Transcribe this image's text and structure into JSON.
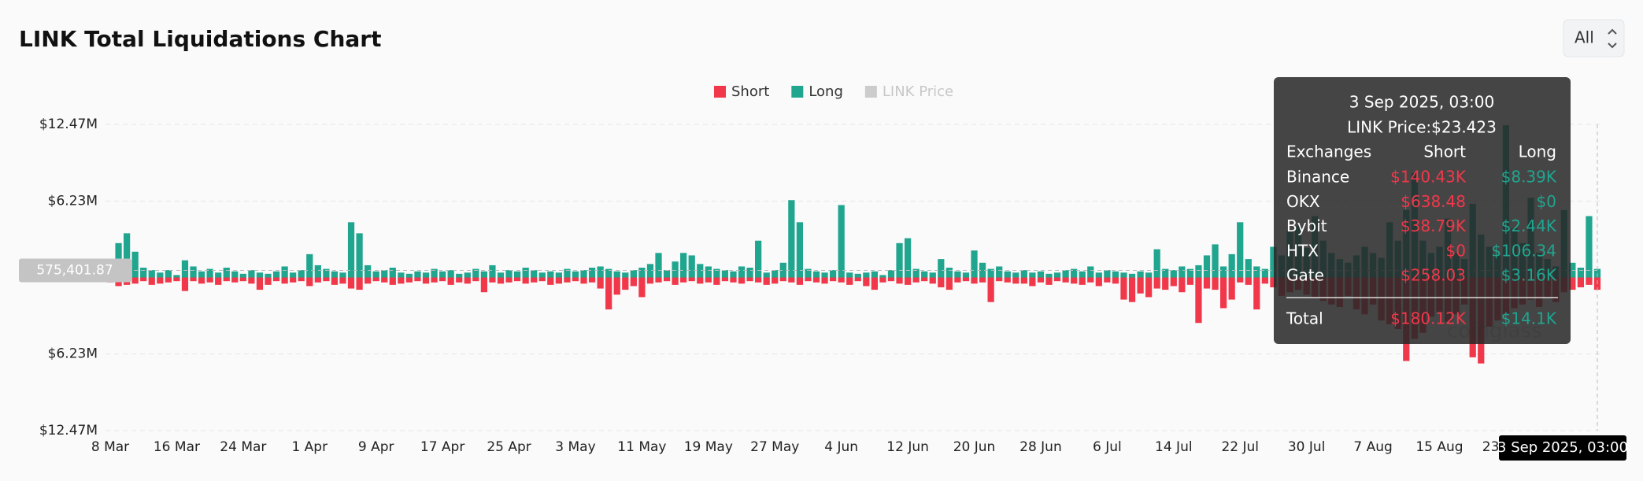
{
  "chart_data": {
    "type": "bar",
    "title": "LINK Total Liquidations Chart",
    "range_button": "All",
    "categories": [
      "8 Mar",
      null,
      null,
      null,
      null,
      null,
      null,
      null,
      "16 Mar",
      null,
      null,
      null,
      null,
      null,
      null,
      null,
      "24 Mar",
      null,
      null,
      null,
      null,
      null,
      null,
      null,
      "1 Apr",
      null,
      null,
      null,
      null,
      null,
      null,
      null,
      "9 Apr",
      null,
      null,
      null,
      null,
      null,
      null,
      null,
      "17 Apr",
      null,
      null,
      null,
      null,
      null,
      null,
      null,
      "25 Apr",
      null,
      null,
      null,
      null,
      null,
      null,
      null,
      "3 May",
      null,
      null,
      null,
      null,
      null,
      null,
      null,
      "11 May",
      null,
      null,
      null,
      null,
      null,
      null,
      null,
      "19 May",
      null,
      null,
      null,
      null,
      null,
      null,
      null,
      "27 May",
      null,
      null,
      null,
      null,
      null,
      null,
      null,
      "4 Jun",
      null,
      null,
      null,
      null,
      null,
      null,
      null,
      "12 Jun",
      null,
      null,
      null,
      null,
      null,
      null,
      null,
      "20 Jun",
      null,
      null,
      null,
      null,
      null,
      null,
      null,
      "28 Jun",
      null,
      null,
      null,
      null,
      null,
      null,
      null,
      "6 Jul",
      null,
      null,
      null,
      null,
      null,
      null,
      null,
      "14 Jul",
      null,
      null,
      null,
      null,
      null,
      null,
      null,
      "22 Jul",
      null,
      null,
      null,
      null,
      null,
      null,
      null,
      "30 Jul",
      null,
      null,
      null,
      null,
      null,
      null,
      null,
      "7 Aug",
      null,
      null,
      null,
      null,
      null,
      null,
      null,
      "15 Aug",
      null,
      null,
      null,
      null,
      null,
      null,
      null,
      "23 Aug",
      null,
      null,
      null,
      null,
      null,
      null,
      null,
      null,
      null,
      null,
      null
    ],
    "series": [
      {
        "name": "Short",
        "color": "#f0384a",
        "values": [
          -400000,
          -700000,
          -600000,
          -500000,
          -300000,
          -600000,
          -500000,
          -400000,
          -300000,
          -1100000,
          -300000,
          -500000,
          -400000,
          -600000,
          -300000,
          -400000,
          -300000,
          -500000,
          -1000000,
          -600000,
          -300000,
          -500000,
          -400000,
          -300000,
          -700000,
          -400000,
          -300000,
          -600000,
          -500000,
          -900000,
          -1000000,
          -500000,
          -300000,
          -400000,
          -600000,
          -500000,
          -400000,
          -300000,
          -500000,
          -400000,
          -300000,
          -600000,
          -400000,
          -500000,
          -300000,
          -1200000,
          -400000,
          -500000,
          -400000,
          -300000,
          -500000,
          -400000,
          -300000,
          -600000,
          -500000,
          -400000,
          -300000,
          -500000,
          -400000,
          -900000,
          -2600000,
          -1400000,
          -1000000,
          -700000,
          -1600000,
          -500000,
          -400000,
          -300000,
          -600000,
          -400000,
          -300000,
          -500000,
          -400000,
          -600000,
          -300000,
          -400000,
          -500000,
          -300000,
          -400000,
          -600000,
          -500000,
          -300000,
          -400000,
          -600000,
          -300000,
          -400000,
          -500000,
          -300000,
          -400000,
          -600000,
          -300000,
          -700000,
          -1000000,
          -400000,
          -300000,
          -500000,
          -600000,
          -400000,
          -300000,
          -500000,
          -800000,
          -1000000,
          -400000,
          -300000,
          -500000,
          -400000,
          -2000000,
          -300000,
          -400000,
          -500000,
          -500000,
          -700000,
          -400000,
          -600000,
          -300000,
          -400000,
          -500000,
          -600000,
          -400000,
          -700000,
          -400000,
          -500000,
          -1800000,
          -2000000,
          -1300000,
          -1600000,
          -900000,
          -1000000,
          -700000,
          -1200000,
          -600000,
          -3700000,
          -900000,
          -1000000,
          -2500000,
          -1800000,
          -400000,
          -600000,
          -2600000,
          -500000,
          -800000,
          -1500000,
          -1200000,
          -1000000,
          -1400000,
          -1600000,
          -1900000,
          -2200000,
          -2400000,
          -1500000,
          -2600000,
          -3000000,
          -2200000,
          -3500000,
          -3800000,
          -4200000,
          -6800000,
          -5000000,
          -4500000,
          -3200000,
          -2800000,
          -3600000,
          -3000000,
          -2200000,
          -6500000,
          -7000000,
          -4000000,
          -3500000,
          -3000000,
          -2500000,
          -2200000,
          -1800000,
          -2400000,
          -1600000,
          -2000000,
          -1200000,
          -1000000,
          -800000,
          -600000,
          -1000000
        ]
      },
      {
        "name": "Long",
        "color": "#20a58f",
        "values": [
          700000,
          2800000,
          3600000,
          2100000,
          800000,
          600000,
          400000,
          600000,
          200000,
          1400000,
          900000,
          500000,
          700000,
          400000,
          800000,
          500000,
          300000,
          600000,
          400000,
          300000,
          500000,
          900000,
          400000,
          600000,
          1900000,
          1000000,
          700000,
          500000,
          400000,
          4500000,
          3600000,
          1000000,
          500000,
          600000,
          800000,
          400000,
          300000,
          500000,
          400000,
          700000,
          500000,
          600000,
          300000,
          400000,
          700000,
          500000,
          1000000,
          400000,
          600000,
          500000,
          800000,
          600000,
          400000,
          500000,
          400000,
          700000,
          500000,
          600000,
          800000,
          900000,
          700000,
          500000,
          400000,
          600000,
          800000,
          1100000,
          2000000,
          600000,
          1300000,
          2000000,
          1800000,
          1100000,
          900000,
          700000,
          600000,
          500000,
          900000,
          800000,
          3000000,
          400000,
          600000,
          1200000,
          6300000,
          4500000,
          700000,
          500000,
          400000,
          600000,
          5900000,
          400000,
          300000,
          400000,
          500000,
          200000,
          600000,
          2800000,
          3200000,
          700000,
          500000,
          400000,
          1500000,
          800000,
          500000,
          400000,
          2200000,
          1200000,
          700000,
          900000,
          500000,
          400000,
          600000,
          400000,
          500000,
          300000,
          400000,
          600000,
          700000,
          500000,
          900000,
          400000,
          600000,
          500000,
          400000,
          300000,
          500000,
          400000,
          2300000,
          700000,
          600000,
          900000,
          700000,
          1000000,
          1800000,
          2700000,
          900000,
          1900000,
          4500000,
          1500000,
          900000,
          700000,
          2500000,
          1800000,
          3800000,
          4200000,
          2400000,
          5000000,
          3000000,
          2000000,
          1500000,
          1200000,
          1800000,
          2500000,
          2000000,
          1600000,
          4500000,
          3000000,
          5500000,
          8500000,
          3000000,
          2000000,
          2500000,
          4800000,
          2000000,
          1500000,
          6000000,
          3500000,
          2500000,
          1800000,
          12400000,
          4000000,
          2800000,
          6500000,
          2000000,
          1500000,
          900000,
          5500000,
          1200000,
          800000,
          5000000,
          700000
        ]
      }
    ],
    "price_series": {
      "name": "LINK Price",
      "color": "#cccccc",
      "hidden": true
    },
    "ylim": [
      -12470000,
      12470000
    ],
    "yticks": [
      {
        "value": 12470000,
        "label": "$12.47M"
      },
      {
        "value": 6230000,
        "label": "$6.23M"
      },
      {
        "value": -6230000,
        "label": "$6.23M"
      },
      {
        "value": -12470000,
        "label": "$12.47M"
      }
    ],
    "grid": true,
    "crosshair": {
      "y": 575401.87,
      "label": "575,401.87",
      "index": 179
    },
    "watermark": "coinglass",
    "tooltip": {
      "title": "3 Sep 2025, 03:00",
      "price": "LINK Price:$23.423",
      "header": [
        "Exchanges",
        "Short",
        "Long"
      ],
      "rows": [
        [
          "Binance",
          "$140.43K",
          "$8.39K"
        ],
        [
          "OKX",
          "$638.48",
          "$0"
        ],
        [
          "Bybit",
          "$38.79K",
          "$2.44K"
        ],
        [
          "HTX",
          "$0",
          "$106.34"
        ],
        [
          "Gate",
          "$258.03",
          "$3.16K"
        ]
      ],
      "total": [
        "Total",
        "$180.12K",
        "$14.1K"
      ]
    }
  }
}
